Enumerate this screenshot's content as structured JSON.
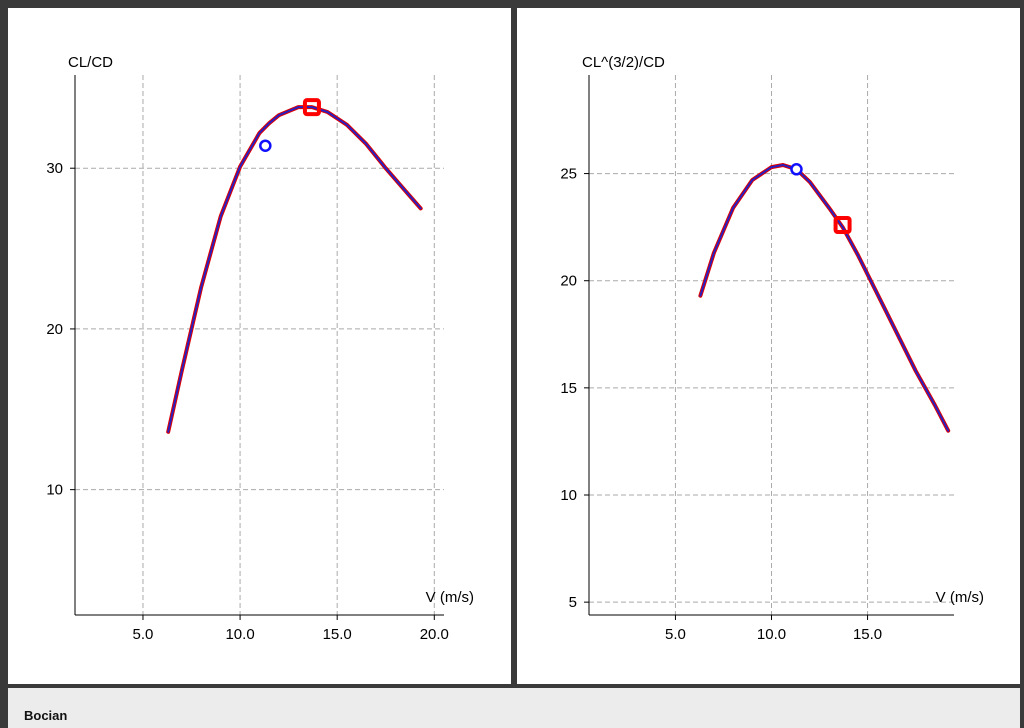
{
  "footer": {
    "title": "Bocian"
  },
  "colors": {
    "curve_outer": "#e00000",
    "curve_inner": "#2a1fbf",
    "marker_circle": "#1010ff",
    "marker_square": "#ff0000",
    "grid": "#aaaaaa"
  },
  "chart_data": [
    {
      "type": "line",
      "ylabel": "CL/CD",
      "xlabel": "V (m/s)",
      "xlim": [
        1.5,
        20.5
      ],
      "ylim": [
        2.2,
        35.8
      ],
      "xticks": [
        5.0,
        10.0,
        15.0,
        20.0
      ],
      "xtick_labels": [
        "5.0",
        "10.0",
        "15.0",
        "20.0"
      ],
      "yticks": [
        10,
        20,
        30
      ],
      "ytick_labels": [
        "10",
        "20",
        "30"
      ],
      "grid": true,
      "series": [
        {
          "x": [
            6.3,
            7.0,
            8.0,
            9.0,
            10.0,
            11.0,
            11.5,
            12.0,
            13.0,
            13.7,
            14.5,
            15.5,
            16.5,
            17.5,
            18.5,
            19.3
          ],
          "y": [
            13.6,
            17.4,
            22.6,
            27.0,
            30.1,
            32.2,
            32.8,
            33.3,
            33.8,
            33.8,
            33.5,
            32.7,
            31.5,
            30.0,
            28.6,
            27.5
          ]
        }
      ],
      "markers": [
        {
          "shape": "circle",
          "x": 11.3,
          "y": 31.4
        },
        {
          "shape": "square",
          "x": 13.7,
          "y": 33.8
        }
      ]
    },
    {
      "type": "line",
      "ylabel": "CL^(3/2)/CD",
      "xlabel": "V (m/s)",
      "xlim": [
        0.5,
        19.5
      ],
      "ylim": [
        4.4,
        29.6
      ],
      "xticks": [
        5.0,
        10.0,
        15.0
      ],
      "xtick_labels": [
        "5.0",
        "10.0",
        "15.0"
      ],
      "yticks": [
        5,
        10,
        15,
        20,
        25
      ],
      "ytick_labels": [
        "5",
        "10",
        "15",
        "20",
        "25"
      ],
      "grid": true,
      "series": [
        {
          "x": [
            6.3,
            7.0,
            8.0,
            9.0,
            10.0,
            10.6,
            11.3,
            12.0,
            13.0,
            13.7,
            14.5,
            15.5,
            16.5,
            17.5,
            18.5,
            19.2
          ],
          "y": [
            19.3,
            21.3,
            23.4,
            24.7,
            25.3,
            25.4,
            25.2,
            24.6,
            23.4,
            22.5,
            21.2,
            19.4,
            17.6,
            15.8,
            14.2,
            13.0
          ]
        }
      ],
      "markers": [
        {
          "shape": "circle",
          "x": 11.3,
          "y": 25.2
        },
        {
          "shape": "square",
          "x": 13.7,
          "y": 22.6
        }
      ]
    }
  ]
}
